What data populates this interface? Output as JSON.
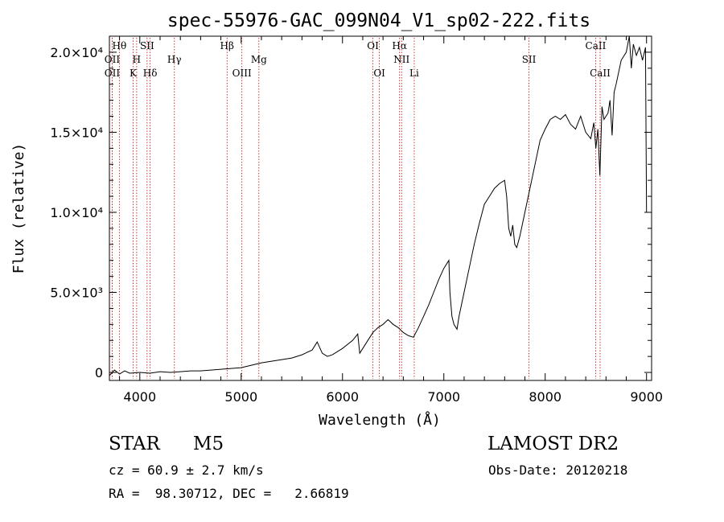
{
  "info": {
    "object_class": "STAR",
    "subclass": "M5",
    "survey": "LAMOST DR2",
    "cz": "cz = 60.9 ± 2.7 km/s",
    "obs_date": "Obs-Date: 20120218",
    "coords": "RA =  98.30712, DEC =   2.66819"
  },
  "colors": {
    "axis": "#000000",
    "spectrum": "#000000",
    "line_marker": "#cc0000",
    "background": "#ffffff"
  },
  "chart_data": {
    "type": "line",
    "title": "spec-55976-GAC_099N04_V1_sp02-222.fits",
    "xlabel": "Wavelength (Å)",
    "ylabel": "Flux (relative)",
    "xlim": [
      3700,
      9050
    ],
    "ylim": [
      -500,
      21000
    ],
    "x_ticks": [
      4000,
      5000,
      6000,
      7000,
      8000,
      9000
    ],
    "y_ticks": [
      {
        "value": 0,
        "label": "0"
      },
      {
        "value": 5000,
        "label": "5.0×10³"
      },
      {
        "value": 10000,
        "label": "1.0×10⁴"
      },
      {
        "value": 15000,
        "label": "1.5×10⁴"
      },
      {
        "value": 20000,
        "label": "2.0×10⁴"
      }
    ],
    "grid": false,
    "line_markers": [
      {
        "label": "Hθ",
        "wavelength": 3798,
        "row": 0
      },
      {
        "label": "OII",
        "wavelength": 3727,
        "row": 1
      },
      {
        "label": "OII",
        "wavelength": 3727,
        "row": 2
      },
      {
        "label": "SII",
        "wavelength": 4072,
        "row": 0
      },
      {
        "label": "H",
        "wavelength": 3969,
        "row": 1
      },
      {
        "label": "K",
        "wavelength": 3934,
        "row": 2
      },
      {
        "label": "Hδ",
        "wavelength": 4102,
        "row": 2
      },
      {
        "label": "Hγ",
        "wavelength": 4341,
        "row": 1
      },
      {
        "label": "Hβ",
        "wavelength": 4861,
        "row": 0
      },
      {
        "label": "OIII",
        "wavelength": 5007,
        "row": 2
      },
      {
        "label": "Mg",
        "wavelength": 5175,
        "row": 1
      },
      {
        "label": "OI",
        "wavelength": 6300,
        "row": 0
      },
      {
        "label": "OI",
        "wavelength": 6364,
        "row": 2
      },
      {
        "label": "Hα",
        "wavelength": 6563,
        "row": 0
      },
      {
        "label": "NII",
        "wavelength": 6583,
        "row": 1
      },
      {
        "label": "Li",
        "wavelength": 6708,
        "row": 2
      },
      {
        "label": "SII",
        "wavelength": 7840,
        "row": 1
      },
      {
        "label": "CaII",
        "wavelength": 8498,
        "row": 0
      },
      {
        "label": "CaII",
        "wavelength": 8542,
        "row": 2
      }
    ],
    "series": [
      {
        "x": [
          3700,
          3750,
          3800,
          3850,
          3900,
          4000,
          4100,
          4200,
          4300,
          4400,
          4500,
          4600,
          4700,
          4800,
          4900,
          5000,
          5100,
          5200,
          5300,
          5400,
          5500,
          5600,
          5700,
          5750,
          5800,
          5850,
          5900,
          6000,
          6100,
          6150,
          6170,
          6200,
          6250,
          6300,
          6350,
          6400,
          6450,
          6500,
          6550,
          6600,
          6650,
          6700,
          6750,
          6800,
          6850,
          6900,
          6950,
          7000,
          7050,
          7060,
          7080,
          7100,
          7130,
          7150,
          7200,
          7250,
          7300,
          7350,
          7400,
          7450,
          7500,
          7550,
          7600,
          7620,
          7640,
          7660,
          7680,
          7700,
          7720,
          7750,
          7800,
          7850,
          7900,
          7950,
          8000,
          8050,
          8100,
          8150,
          8200,
          8250,
          8300,
          8350,
          8400,
          8450,
          8480,
          8500,
          8520,
          8540,
          8560,
          8580,
          8600,
          8620,
          8640,
          8660,
          8680,
          8700,
          8750,
          8800,
          8830,
          8850,
          8870,
          8900,
          8930,
          8960,
          8990,
          9000
        ],
        "y": [
          -200,
          150,
          -100,
          100,
          -50,
          0,
          -50,
          50,
          0,
          50,
          100,
          100,
          150,
          200,
          250,
          300,
          450,
          600,
          700,
          800,
          900,
          1100,
          1400,
          1900,
          1200,
          1000,
          1100,
          1500,
          2000,
          2400,
          1200,
          1500,
          2000,
          2500,
          2800,
          3000,
          3300,
          3000,
          2800,
          2500,
          2300,
          2200,
          2800,
          3500,
          4200,
          5000,
          5800,
          6500,
          7000,
          5000,
          3500,
          3000,
          2700,
          3500,
          5000,
          6500,
          8000,
          9300,
          10500,
          11000,
          11500,
          11800,
          12000,
          11000,
          9000,
          8500,
          9200,
          8000,
          7800,
          8500,
          10000,
          11500,
          13000,
          14500,
          15200,
          15800,
          16000,
          15800,
          16100,
          15500,
          15200,
          16000,
          15000,
          14600,
          15600,
          14000,
          15200,
          12300,
          16600,
          15800,
          16000,
          16200,
          17000,
          14800,
          17500,
          18000,
          19500,
          20000,
          21000,
          19000,
          20500,
          19800,
          20300,
          19500,
          20300,
          10000
        ]
      }
    ]
  }
}
